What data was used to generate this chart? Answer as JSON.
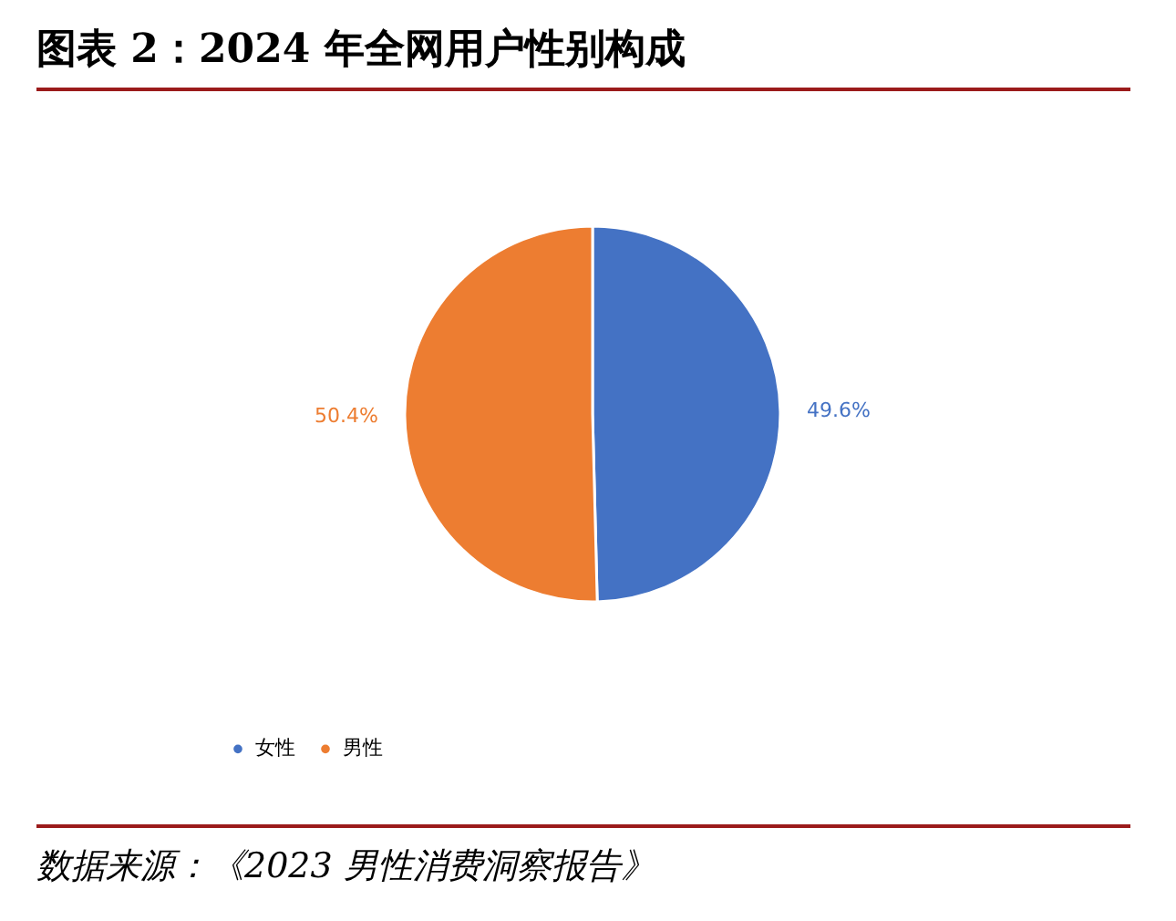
{
  "chart_data": {
    "type": "pie",
    "title": "图表 2：2024 年全网用户性别构成",
    "categories": [
      "女性",
      "男性"
    ],
    "values": [
      49.6,
      50.4
    ],
    "colors": [
      "#4472c4",
      "#ed7d31"
    ],
    "value_labels": [
      "49.6%",
      "50.4%"
    ],
    "legend": "bottom",
    "annotations": [
      "数据来源：《2023 男性消费洞察报告》"
    ]
  }
}
